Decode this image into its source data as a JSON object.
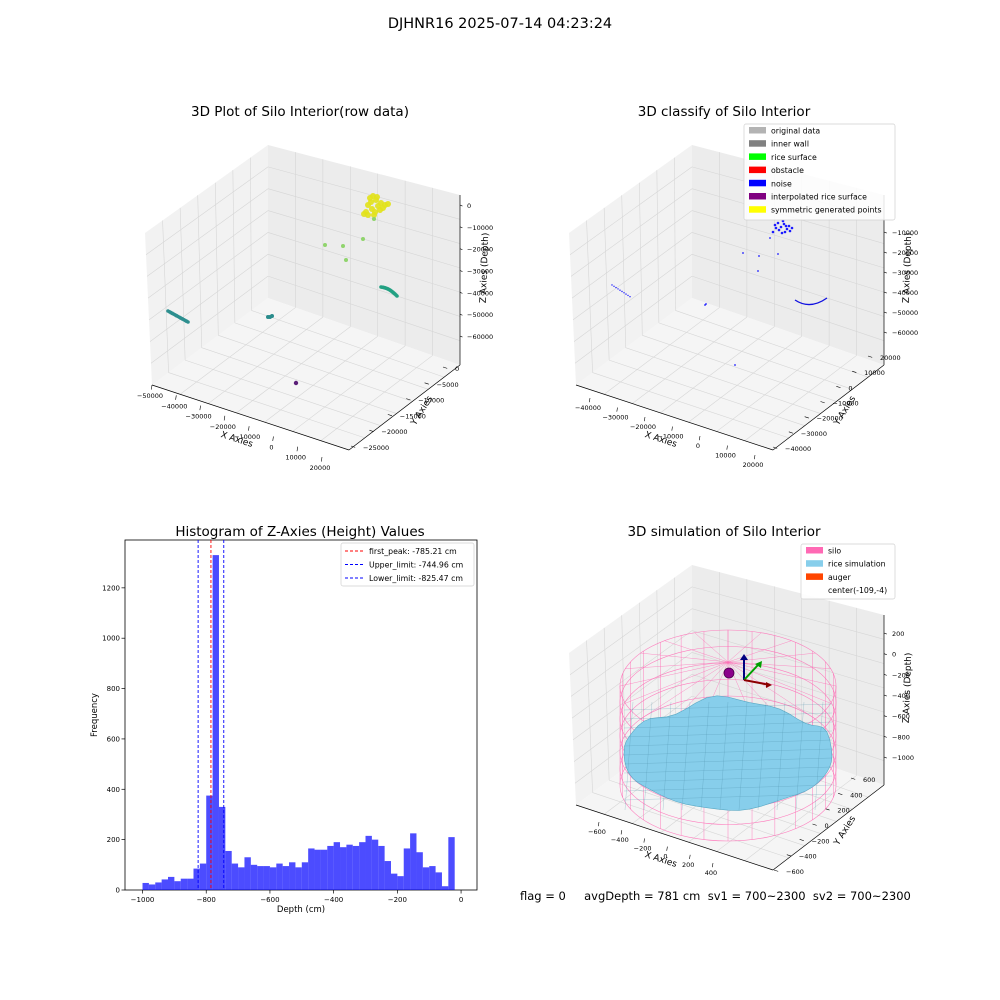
{
  "figure": {
    "suptitle": "DJHNR16 2025-07-14 04:23:24",
    "footer": "flag = 0     avgDepth = 781 cm  sv1 = 700~2300  sv2 = 700~2300"
  },
  "chart_data": [
    {
      "type": "scatter",
      "projection": "3d",
      "title": "3D Plot of Silo Interior(row data)",
      "xlabel": "X Axies",
      "ylabel": "Y Axies",
      "zlabel": "Z Axies (Depth)",
      "xticks": [
        "−50000",
        "−40000",
        "−30000",
        "−20000",
        "−10000",
        "0",
        "10000",
        "20000"
      ],
      "yticks": [
        "0",
        "−5000",
        "−10000",
        "−15000",
        "−20000",
        "−25000"
      ],
      "zticks": [
        "0",
        "−10000",
        "−20000",
        "−30000",
        "−40000",
        "−50000",
        "−60000"
      ],
      "grid": true,
      "colormap": "viridis by depth",
      "clusters": [
        {
          "description": "dense yellow cluster near top",
          "color": "#e8e01f",
          "x": 9000,
          "y": -5000,
          "z": -2000
        },
        {
          "description": "scattered light green points",
          "color": "#8fd16e",
          "x": -5000,
          "y": -9000,
          "z": -17000
        },
        {
          "description": "teal arc",
          "color": "#26918a",
          "x": 15000,
          "y": -14000,
          "z": -43000
        },
        {
          "description": "teal line on left",
          "color": "#2c8b8d",
          "x": -48000,
          "y": -10000,
          "z": -45000
        },
        {
          "description": "small teal cluster",
          "color": "#2a8c8c",
          "x": -22000,
          "y": -8000,
          "z": -50000
        },
        {
          "description": "single purple point",
          "color": "#5b1f78",
          "x": 5000,
          "y": -22000,
          "z": -60000
        }
      ]
    },
    {
      "type": "scatter",
      "projection": "3d",
      "title": "3D classify of Silo Interior",
      "xlabel": "X Axies",
      "ylabel": "Y Axies",
      "zlabel": "Z Axies (Depth)",
      "xticks": [
        "−40000",
        "−30000",
        "−20000",
        "−10000",
        "0",
        "10000",
        "20000"
      ],
      "yticks": [
        "20000",
        "10000",
        "0",
        "−10000",
        "−20000",
        "−30000",
        "−40000"
      ],
      "zticks": [
        "−10000",
        "−20000",
        "−30000",
        "−40000",
        "−50000",
        "−60000"
      ],
      "grid": true,
      "legend": {
        "position": "upper right",
        "entries": [
          {
            "label": "original data",
            "color": "#b3b3b3"
          },
          {
            "label": "inner wall",
            "color": "#808080"
          },
          {
            "label": "rice surface",
            "color": "#00ff00"
          },
          {
            "label": "obstacle",
            "color": "#ff0000"
          },
          {
            "label": "noise",
            "color": "#0000ff"
          },
          {
            "label": "interpolated rice surface",
            "color": "#800080"
          },
          {
            "label": "symmetric generated points",
            "color": "#ffff00"
          }
        ]
      },
      "clusters": [
        {
          "description": "dense noise cluster near top",
          "class": "noise"
        },
        {
          "description": "noise arc",
          "class": "noise"
        },
        {
          "description": "scattered noise points",
          "class": "noise"
        }
      ]
    },
    {
      "type": "bar",
      "title": "Histogram of Z-Axies (Height) Values",
      "xlabel": "Depth (cm)",
      "ylabel": "Frequency",
      "xlim": [
        -1055,
        50
      ],
      "ylim": [
        0,
        1390
      ],
      "xticks": [
        -1000,
        -800,
        -600,
        -400,
        -200,
        0
      ],
      "yticks": [
        0,
        200,
        400,
        600,
        800,
        1000,
        1200
      ],
      "xtick_labels": [
        "−1000",
        "−800",
        "−600",
        "−400",
        "−200",
        "0"
      ],
      "ytick_labels": [
        "0",
        "200",
        "400",
        "600",
        "800",
        "1000",
        "1200"
      ],
      "bar_color": "#0000ff",
      "bar_alpha": 0.7,
      "bin_width": 20,
      "bin_start": -1000,
      "values": [
        28,
        22,
        30,
        42,
        52,
        35,
        45,
        45,
        85,
        105,
        375,
        1330,
        330,
        155,
        105,
        90,
        130,
        100,
        95,
        95,
        90,
        105,
        95,
        110,
        90,
        110,
        165,
        160,
        160,
        175,
        190,
        170,
        180,
        175,
        190,
        215,
        200,
        175,
        115,
        65,
        55,
        165,
        225,
        150,
        90,
        95,
        70,
        15,
        210
      ],
      "lines": [
        {
          "label": "first_peak: -785.21 cm",
          "x": -785.21,
          "color": "#ff0000",
          "style": "dashed"
        },
        {
          "label": "Upper_limit: -744.96 cm",
          "x": -744.96,
          "color": "#0000ff",
          "style": "dashed"
        },
        {
          "label": "Lower_limit: -825.47 cm",
          "x": -825.47,
          "color": "#0000ff",
          "style": "dashed"
        }
      ],
      "legend": {
        "position": "upper right"
      }
    },
    {
      "type": "surface",
      "projection": "3d",
      "title": "3D simulation of Silo Interior",
      "xlabel": "X Axies",
      "ylabel": "Y Axies",
      "zlabel": "Z Axies (Depth)",
      "xticks": [
        "−600",
        "−400",
        "−200",
        "0",
        "200",
        "400"
      ],
      "yticks": [
        "600",
        "400",
        "200",
        "0",
        "−200",
        "−400",
        "−600"
      ],
      "zticks": [
        "200",
        "0",
        "−200",
        "−400",
        "−600",
        "−800",
        "−1000"
      ],
      "grid": true,
      "legend": {
        "position": "upper right",
        "entries": [
          {
            "label": "silo",
            "color": "#ff69b4"
          },
          {
            "label": "rice simulation",
            "color": "#87ceeb"
          },
          {
            "label": "auger",
            "color": "#ff4500"
          },
          {
            "label": "center(-109,-4)",
            "color": ""
          }
        ]
      },
      "silo_color": "#ff69b4",
      "rice_color": "#87ceeb",
      "auger_color": "#ff4500",
      "center": [
        -109,
        -4
      ]
    }
  ]
}
